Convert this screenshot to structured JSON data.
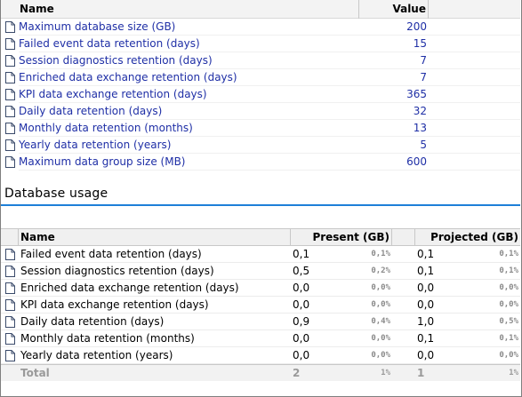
{
  "settings_table": {
    "headers": {
      "name": "Name",
      "value": "Value"
    },
    "rows": [
      {
        "name": "Maximum database size (GB)",
        "value": "200"
      },
      {
        "name": "Failed event data retention (days)",
        "value": "15"
      },
      {
        "name": "Session diagnostics retention (days)",
        "value": "7"
      },
      {
        "name": "Enriched data exchange retention (days)",
        "value": "7"
      },
      {
        "name": "KPI data exchange retention (days)",
        "value": "365"
      },
      {
        "name": "Daily data retention (days)",
        "value": "32"
      },
      {
        "name": "Monthly data retention (months)",
        "value": "13"
      },
      {
        "name": "Yearly data retention (years)",
        "value": "5"
      },
      {
        "name": "Maximum data group size (MB)",
        "value": "600"
      }
    ]
  },
  "usage_section": {
    "title": "Database usage"
  },
  "usage_table": {
    "headers": {
      "name": "Name",
      "present": "Present (GB)",
      "projected": "Projected (GB)"
    },
    "rows": [
      {
        "name": "Failed event data retention (days)",
        "present": "0,1",
        "present_pct": "0,1%",
        "projected": "0,1",
        "projected_pct": "0,1%"
      },
      {
        "name": "Session diagnostics retention (days)",
        "present": "0,5",
        "present_pct": "0,2%",
        "projected": "0,1",
        "projected_pct": "0,1%"
      },
      {
        "name": "Enriched data exchange retention (days)",
        "present": "0,0",
        "present_pct": "0,0%",
        "projected": "0,0",
        "projected_pct": "0,0%"
      },
      {
        "name": "KPI data exchange retention (days)",
        "present": "0,0",
        "present_pct": "0,0%",
        "projected": "0,0",
        "projected_pct": "0,0%"
      },
      {
        "name": "Daily data retention (days)",
        "present": "0,9",
        "present_pct": "0,4%",
        "projected": "1,0",
        "projected_pct": "0,5%"
      },
      {
        "name": "Monthly data retention (months)",
        "present": "0,0",
        "present_pct": "0,0%",
        "projected": "0,1",
        "projected_pct": "0,1%"
      },
      {
        "name": "Yearly data retention (years)",
        "present": "0,0",
        "present_pct": "0,0%",
        "projected": "0,0",
        "projected_pct": "0,0%"
      }
    ],
    "total": {
      "name": "Total",
      "present": "2",
      "present_pct": "1%",
      "projected": "1",
      "projected_pct": "1%"
    }
  },
  "icons": {
    "row_icon": "document-icon"
  },
  "colors": {
    "link_text": "#1f2fa6",
    "section_rule": "#1e7fd8",
    "muted_text": "#8a8a8a"
  }
}
